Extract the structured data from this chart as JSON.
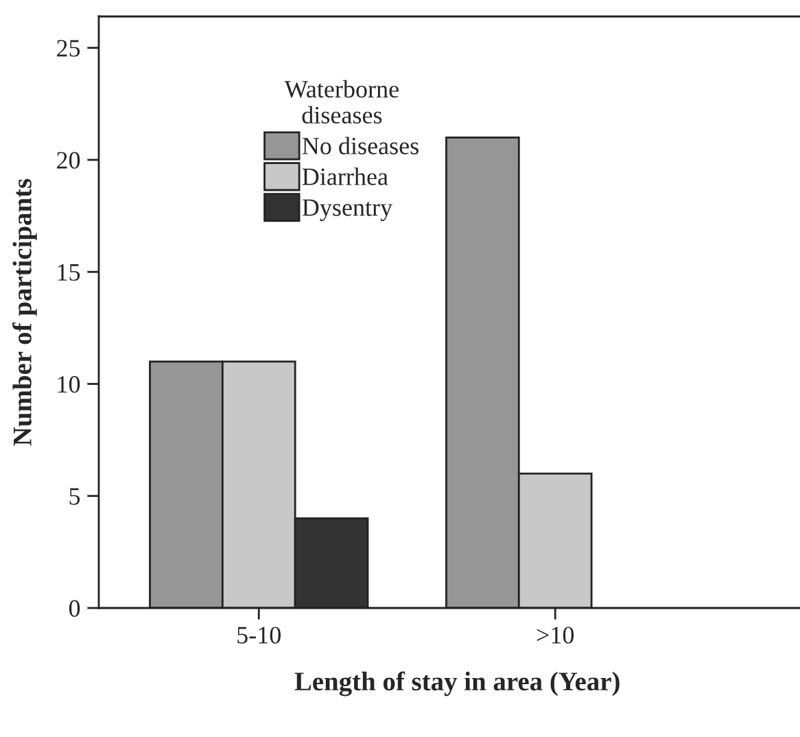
{
  "chart_data": {
    "type": "bar",
    "xlabel": "Length of stay in area (Year)",
    "ylabel": "Number of participants",
    "legend_title": "Waterborne\ndiseases",
    "legend": "top left",
    "categories": [
      "5-10",
      ">10"
    ],
    "series": [
      {
        "name": "No diseases",
        "color": "#969696",
        "values": [
          11,
          21
        ]
      },
      {
        "name": "Diarrhea",
        "color": "#c8c8c8",
        "values": [
          11,
          6
        ]
      },
      {
        "name": "Dysentry",
        "color": "#333333",
        "values": [
          4,
          null
        ]
      }
    ],
    "ylim": [
      0,
      26.4
    ],
    "yticks": [
      0,
      5,
      10,
      15,
      20,
      25
    ],
    "grid": false
  }
}
